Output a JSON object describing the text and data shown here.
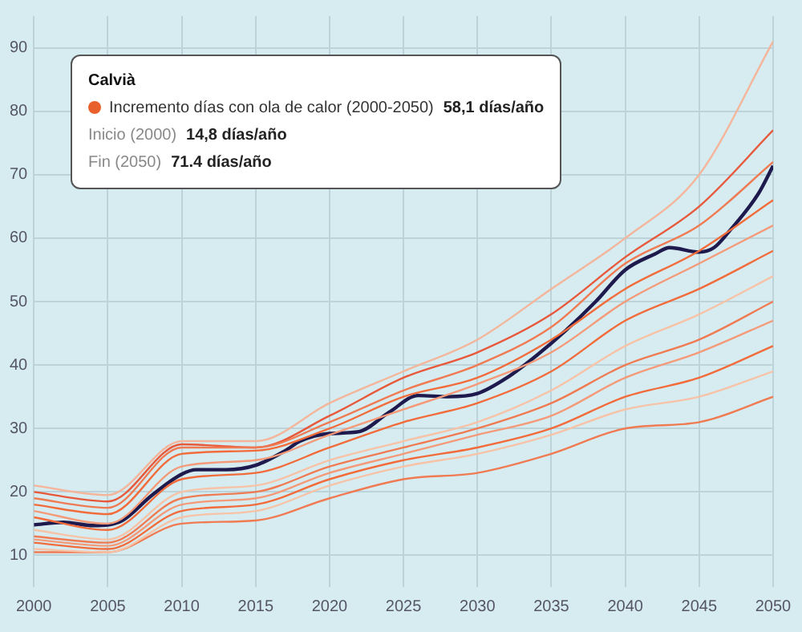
{
  "chart_data": {
    "type": "line",
    "x": [
      2000,
      2005,
      2010,
      2015,
      2020,
      2025,
      2030,
      2035,
      2040,
      2045,
      2050
    ],
    "xlim": [
      2000,
      2050
    ],
    "xticks": [
      2000,
      2005,
      2010,
      2015,
      2020,
      2025,
      2030,
      2035,
      2040,
      2045,
      2050
    ],
    "ylim": [
      5,
      95
    ],
    "yticks": [
      10,
      20,
      30,
      40,
      50,
      60,
      70,
      80,
      90
    ],
    "grid": true,
    "legend": false,
    "marker": "none",
    "line_style": "solid",
    "annotations": [
      "Calvià",
      "Incremento días con ola de calor (2000-2050)",
      "58,1 días/año",
      "Inicio (2000)",
      "14,8 días/año",
      "Fin (2050)",
      "71.4 días/año"
    ],
    "series": [
      {
        "color": "#f4b59a",
        "values": [
          21,
          19.5,
          28,
          28,
          34,
          39,
          44,
          52,
          60,
          70,
          91
        ]
      },
      {
        "color": "#f07a52",
        "values": [
          19,
          17.5,
          27,
          27,
          31,
          36,
          40,
          46,
          56,
          62,
          72
        ]
      },
      {
        "color": "#f26b3a",
        "values": [
          18,
          16.5,
          26,
          26.5,
          30,
          35,
          38,
          44,
          52,
          58,
          66
        ]
      },
      {
        "color": "#f59a78",
        "values": [
          17,
          15,
          24,
          25,
          29,
          33,
          37,
          42,
          50,
          56,
          62
        ]
      },
      {
        "color": "#f26b3a",
        "values": [
          16,
          14,
          22,
          23,
          27,
          31,
          34,
          39,
          47,
          52,
          58
        ]
      },
      {
        "color": "#f7c2a6",
        "values": [
          14,
          12.5,
          20,
          21,
          25,
          28,
          31,
          36,
          43,
          48,
          54
        ]
      },
      {
        "color": "#f07a52",
        "values": [
          13,
          12,
          19,
          20,
          24,
          27,
          30,
          34,
          40,
          44,
          50
        ]
      },
      {
        "color": "#f59a78",
        "values": [
          12.5,
          11.5,
          18,
          19,
          23,
          26,
          29,
          32,
          38,
          42,
          47
        ]
      },
      {
        "color": "#f26b3a",
        "values": [
          12,
          11,
          17,
          18,
          22,
          25,
          27,
          30,
          35,
          38,
          43
        ]
      },
      {
        "color": "#f7c2a6",
        "values": [
          11,
          10.5,
          16,
          17,
          21,
          24,
          26,
          29,
          33,
          35,
          39
        ]
      },
      {
        "color": "#f07a52",
        "values": [
          10.5,
          10.5,
          15,
          15.5,
          19,
          22,
          23,
          26,
          30,
          31,
          35
        ]
      },
      {
        "color": "#e8583a",
        "values": [
          20,
          18.5,
          27.5,
          27,
          32,
          38,
          42,
          48,
          57,
          65,
          77
        ]
      },
      {
        "color": "#1f1a4d",
        "x": [
          2000,
          2002,
          2004,
          2005,
          2006,
          2008,
          2010,
          2011,
          2013,
          2015,
          2017,
          2018,
          2020,
          2022,
          2024,
          2026,
          2028,
          2030,
          2032,
          2034,
          2036,
          2038,
          2040,
          2042,
          2043,
          2045,
          2046,
          2047,
          2049,
          2050
        ],
        "values": [
          14.8,
          15.2,
          14.7,
          14.8,
          15.5,
          19.5,
          22.8,
          23.5,
          23.5,
          24.2,
          26.5,
          28,
          29.2,
          29.5,
          32.5,
          35.2,
          35,
          35.5,
          38,
          41.5,
          45.5,
          50,
          55,
          57.5,
          58.5,
          57.8,
          58.5,
          61,
          67,
          71.4
        ]
      }
    ]
  }
}
